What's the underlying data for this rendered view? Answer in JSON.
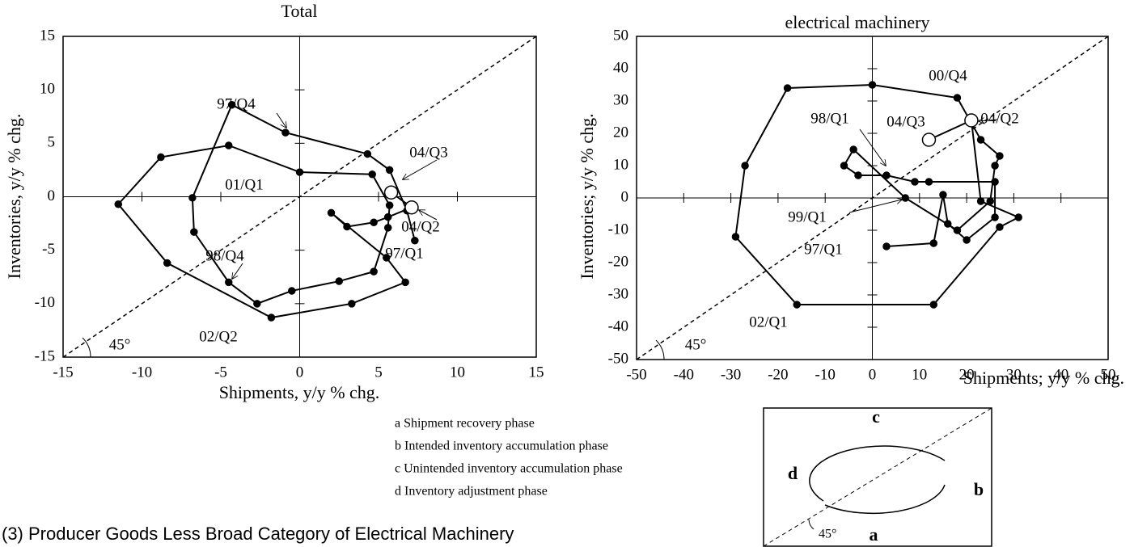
{
  "chart_data": [
    {
      "type": "line",
      "title": "Total",
      "x_label": "Shipments, y/y % chg.",
      "y_label": "Inventories, y/y % chg.",
      "x": [
        7.3,
        6.8,
        5.7,
        4.3,
        -0.9,
        -4.3,
        -6.8,
        -6.7,
        -4.5,
        -2.7,
        -0.5,
        2.5,
        4.7,
        5.6,
        5.7,
        4.6,
        0.0,
        -4.5,
        -8.8,
        -11.5,
        -8.4,
        -1.8,
        3.3,
        6.7,
        5.5,
        2.0,
        3.0,
        4.7,
        5.6,
        7.1,
        5.8
      ],
      "values": [
        -4.1,
        -1.3,
        2.5,
        4.0,
        6.0,
        8.6,
        -0.1,
        -3.3,
        -8.0,
        -10.0,
        -8.8,
        -7.9,
        -7.0,
        -2.9,
        -0.8,
        2.1,
        2.3,
        4.8,
        3.7,
        -0.7,
        -6.2,
        -11.3,
        -10.0,
        -8.0,
        -5.7,
        -1.5,
        -2.8,
        -2.4,
        -1.9,
        -1.0,
        0.4
      ],
      "color": "#000000",
      "xlim": [
        -15,
        15
      ],
      "ylim": [
        -15,
        15
      ],
      "xticks": [
        -15,
        -10,
        -5,
        0,
        5,
        10,
        15
      ],
      "yticks": [
        -15,
        -10,
        -5,
        0,
        5,
        10,
        15
      ],
      "annotations": [
        "97/Q4",
        "04/Q3",
        "01/Q1",
        "04/Q2",
        "97/Q1",
        "98/Q4",
        "02/Q2",
        "45°"
      ]
    },
    {
      "type": "line",
      "title": "electrical machinery",
      "x_label": "Shipments; y/y % chg.",
      "y_label": "Inventories; y/y % chg.",
      "x": [
        3,
        13,
        15,
        16,
        20,
        26,
        26,
        12,
        9,
        3,
        -3,
        -6,
        -4,
        7,
        18,
        25,
        26,
        27,
        23,
        18,
        0,
        -18,
        -27,
        -29,
        -16,
        13,
        27,
        31,
        23,
        21,
        12
      ],
      "values": [
        -15,
        -14,
        1,
        -8,
        -13,
        -6,
        5,
        5,
        5,
        7,
        7,
        10,
        15,
        0,
        -10,
        -1,
        10,
        13,
        18,
        31,
        35,
        34,
        10,
        -12,
        -33,
        -33,
        -9,
        -6,
        -1,
        24,
        18
      ],
      "color": "#000000",
      "xlim": [
        -50,
        50
      ],
      "ylim": [
        -50,
        50
      ],
      "xticks": [
        -50,
        -40,
        -30,
        -20,
        -10,
        0,
        10,
        20,
        30,
        40,
        50
      ],
      "yticks": [
        -50,
        -40,
        -30,
        -20,
        -10,
        0,
        10,
        20,
        30,
        40,
        50
      ],
      "annotations": [
        "00/Q4",
        "04/Q3",
        "04/Q2",
        "98/Q1",
        "99/Q1",
        "97/Q1",
        "02/Q1",
        "45°"
      ]
    }
  ],
  "notes": [
    "a Shipment recovery phase",
    "b Intended inventory accumulation phase",
    "c Unintended inventory accumulation phase",
    "d Inventory adjustment phase"
  ],
  "phase_diagram": {
    "labels": [
      "c",
      "d",
      "b",
      "a"
    ],
    "angle": "45°"
  },
  "caption": "(3) Producer Goods Less Broad Category of Electrical Machinery"
}
